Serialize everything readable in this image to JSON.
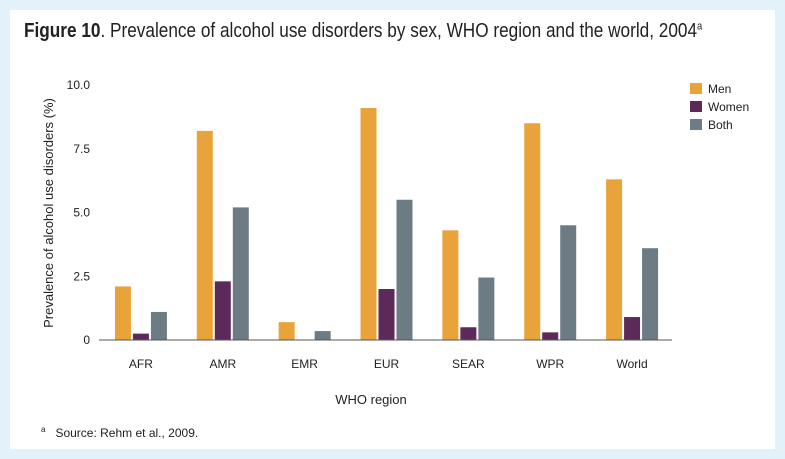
{
  "title": {
    "figure_label": "Figure 10",
    "text": ". Prevalence of alcohol use disorders by sex, WHO region and the world, 2004",
    "superscript": "a"
  },
  "footnote": {
    "marker": "a",
    "text": "Source: Rehm et al., 2009."
  },
  "colors": {
    "men": "#e8a43a",
    "women": "#5c2a58",
    "both": "#6d7b85"
  },
  "chart_data": {
    "type": "bar",
    "title": "Prevalence of alcohol use disorders by sex, WHO region and the world, 2004",
    "xlabel": "WHO region",
    "ylabel": "Prevalence of alcohol use disorders (%)",
    "ylim": [
      0,
      10
    ],
    "yticks": [
      "0",
      "2.5",
      "5.0",
      "7.5",
      "10.0"
    ],
    "yticks_values": [
      0,
      2.5,
      5.0,
      7.5,
      10.0
    ],
    "categories": [
      "AFR",
      "AMR",
      "EMR",
      "EUR",
      "SEAR",
      "WPR",
      "World"
    ],
    "series": [
      {
        "name": "Men",
        "values": [
          2.1,
          8.2,
          0.7,
          9.1,
          4.3,
          8.5,
          6.3
        ]
      },
      {
        "name": "Women",
        "values": [
          0.25,
          2.3,
          0,
          2.0,
          0.5,
          0.3,
          0.9
        ]
      },
      {
        "name": "Both",
        "values": [
          1.1,
          5.2,
          0.35,
          5.5,
          2.45,
          4.5,
          3.6
        ]
      }
    ],
    "legend_position": "top-right",
    "grid": false
  }
}
